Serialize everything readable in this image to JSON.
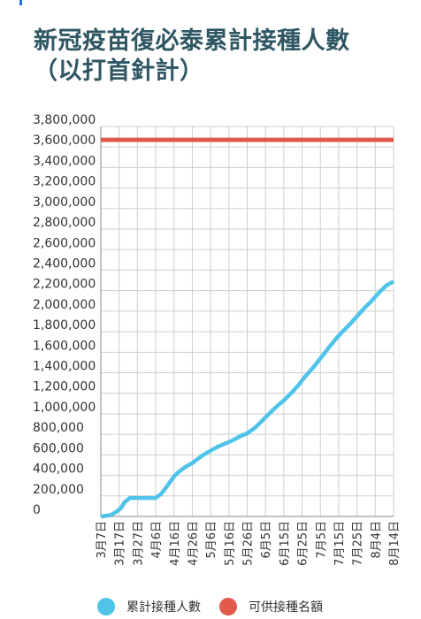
{
  "title_lines": [
    "新冠疫苗復必泰累計接種人數",
    "（以打首針計）"
  ],
  "chart_data": {
    "type": "line",
    "title": "新冠疫苗復必泰累計接種人數（以打首針計）",
    "xlabel": "",
    "ylabel": "",
    "ylim": [
      0,
      3800000
    ],
    "y_ticks": [
      0,
      200000,
      400000,
      600000,
      800000,
      1000000,
      1200000,
      1400000,
      1600000,
      1800000,
      2000000,
      2200000,
      2400000,
      2600000,
      2800000,
      3000000,
      3200000,
      3400000,
      3600000,
      3800000
    ],
    "y_tick_labels": [
      "0",
      "200,000",
      "400,000",
      "600,000",
      "800,000",
      "1,000,000",
      "1,200,000",
      "1,400,000",
      "1,600,000",
      "1,800,000",
      "2,000,000",
      "2,200,000",
      "2,400,000",
      "2,600,000",
      "2,800,000",
      "3,000,000",
      "3,200,000",
      "3,400,000",
      "3,600,000",
      "3,800,000"
    ],
    "categories": [
      "3月7日",
      "3月17日",
      "3月27日",
      "4月6日",
      "4月16日",
      "4月26日",
      "5月6日",
      "5月16日",
      "5月26日",
      "6月5日",
      "6月15日",
      "6月25日",
      "7月5日",
      "7月15日",
      "7月25日",
      "8月4日",
      "8月14日"
    ],
    "grid": true,
    "legend_position": "bottom",
    "series": [
      {
        "name": "累計接種人數",
        "color": "#4fc3e8",
        "x": [
          0,
          0.5,
          0.8,
          1.1,
          1.3,
          1.6,
          1.8,
          2.0,
          2.5,
          3.0,
          3.3,
          3.6,
          4.0,
          4.3,
          4.6,
          5.0,
          5.3,
          5.6,
          6.0,
          6.4,
          6.8,
          7.2,
          7.6,
          8.0,
          8.4,
          8.8,
          9.2,
          9.6,
          10.0,
          10.4,
          10.8,
          11.2,
          11.6,
          12.0,
          12.4,
          12.8,
          13.2,
          13.6,
          14.0,
          14.4,
          14.8,
          15.2,
          15.6,
          16.0
        ],
        "values": [
          0,
          10000,
          40000,
          80000,
          140000,
          180000,
          180000,
          180000,
          180000,
          180000,
          220000,
          290000,
          390000,
          440000,
          480000,
          520000,
          560000,
          600000,
          640000,
          680000,
          710000,
          740000,
          780000,
          810000,
          860000,
          930000,
          1000000,
          1070000,
          1130000,
          1200000,
          1280000,
          1370000,
          1450000,
          1540000,
          1630000,
          1720000,
          1800000,
          1870000,
          1950000,
          2030000,
          2100000,
          2180000,
          2250000,
          2290000
        ]
      },
      {
        "name": "可供接種名額",
        "color": "#e15a4b",
        "x": [
          0,
          16
        ],
        "values": [
          3670000,
          3670000
        ]
      }
    ]
  }
}
